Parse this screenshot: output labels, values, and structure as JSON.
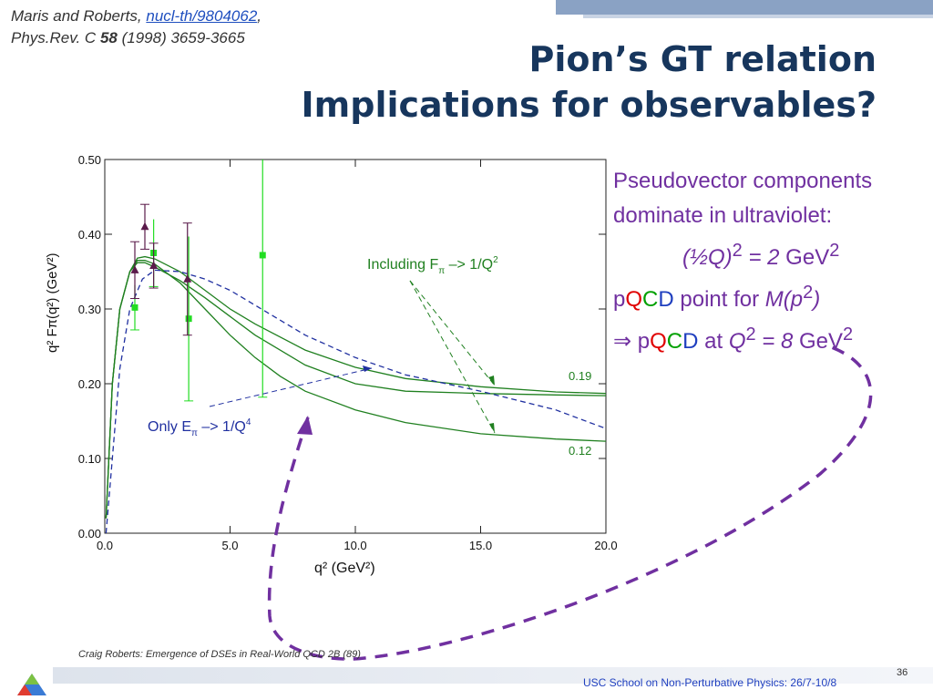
{
  "citation": {
    "authors": "Maris and Roberts,",
    "arxiv": "nucl-th/9804062",
    "journal": "Phys.Rev. C",
    "volume": "58",
    "pages": "(1998) 3659-3665"
  },
  "title": {
    "line1": "Pion’s GT relation",
    "line2": "Implications for observables?"
  },
  "side_text": {
    "line1": "Pseudovector components",
    "line2": "dominate in ultraviolet:",
    "line3_expr": "(½Q)",
    "line3_eq": " = 2 ",
    "line3_unit": "GeV",
    "line4_p": "p",
    "line4_point": " point for ",
    "line4_m": "M(p",
    "line5_arrow": "⇒ p",
    "line5_at": " at ",
    "line5_q": "Q",
    "line5_eq": " = 8 ",
    "line5_unit": "GeV",
    "sup2": "2",
    "pqcd_q": "Q",
    "pqcd_c": "C",
    "pqcd_d": "D",
    "close_paren": ")"
  },
  "footer": {
    "credit": "Craig Roberts: Emergence of DSEs in Real-World QCD 2B (89)",
    "school": "USC School on Non-Perturbative Physics: 26/7-10/8",
    "page": "36"
  },
  "colors": {
    "title": "#17365d",
    "accent": "#7030a0",
    "curve_green": "#208020",
    "data_green": "#22dd22",
    "data_purple": "#5a1a4a",
    "dashed_blue": "#2030a0"
  },
  "chart_data": {
    "type": "line",
    "xlabel": "q² (GeV²)",
    "ylabel": "q² Fπ(q²) (GeV²)",
    "xlim": [
      0,
      20
    ],
    "ylim": [
      0,
      0.5
    ],
    "x_ticks": [
      "0.0",
      "5.0",
      "10.0",
      "15.0",
      "20.0"
    ],
    "y_ticks": [
      "0.00",
      "0.10",
      "0.20",
      "0.30",
      "0.40",
      "0.50"
    ],
    "annotations": {
      "including": "Including F",
      "including_tail": " –> 1/Q",
      "only": "Only E",
      "only_tail": " –> 1/Q",
      "pi": "π",
      "exp2": "2",
      "exp4": "4",
      "label_019": "0.19",
      "label_012": "0.12"
    },
    "series": [
      {
        "style": "solid",
        "x": [
          0.05,
          0.3,
          0.6,
          1.0,
          1.3,
          1.6,
          2.0,
          3.0,
          4.0,
          5.0,
          6.0,
          8.0,
          10.0,
          12.0,
          15.0,
          18.0,
          20.0
        ],
        "y": [
          0.02,
          0.2,
          0.3,
          0.35,
          0.368,
          0.37,
          0.367,
          0.35,
          0.325,
          0.3,
          0.28,
          0.245,
          0.222,
          0.207,
          0.196,
          0.189,
          0.187
        ]
      },
      {
        "style": "solid",
        "x": [
          0.05,
          0.3,
          0.6,
          1.0,
          1.3,
          1.6,
          2.0,
          3.0,
          4.0,
          5.0,
          6.0,
          7.0,
          8.0,
          10.0,
          12.0,
          15.0,
          18.0,
          20.0
        ],
        "y": [
          0.02,
          0.2,
          0.3,
          0.35,
          0.365,
          0.365,
          0.36,
          0.335,
          0.3,
          0.265,
          0.235,
          0.21,
          0.19,
          0.165,
          0.148,
          0.133,
          0.126,
          0.123
        ]
      },
      {
        "style": "solid",
        "x": [
          0.05,
          0.3,
          0.6,
          1.0,
          1.3,
          1.6,
          2.0,
          3.0,
          4.0,
          5.0,
          6.0,
          8.0,
          10.0,
          12.0,
          15.0,
          18.0,
          20.0
        ],
        "y": [
          0.02,
          0.2,
          0.3,
          0.35,
          0.362,
          0.362,
          0.356,
          0.338,
          0.315,
          0.29,
          0.265,
          0.225,
          0.2,
          0.19,
          0.187,
          0.185,
          0.184
        ]
      },
      {
        "style": "dashed",
        "x": [
          0.05,
          0.3,
          0.6,
          1.0,
          1.5,
          2.0,
          3.0,
          4.0,
          5.0,
          6.0,
          8.0,
          10.0,
          12.0,
          15.0,
          18.0,
          20.0
        ],
        "y": [
          0.0,
          0.1,
          0.22,
          0.3,
          0.34,
          0.352,
          0.35,
          0.34,
          0.325,
          0.305,
          0.265,
          0.235,
          0.212,
          0.19,
          0.165,
          0.14
        ]
      }
    ],
    "points_green": [
      {
        "x": 1.2,
        "y": 0.302,
        "err": 0.03
      },
      {
        "x": 1.95,
        "y": 0.375,
        "err": 0.045
      },
      {
        "x": 3.35,
        "y": 0.287,
        "err": 0.11
      },
      {
        "x": 6.3,
        "y": 0.372,
        "err": 0.19
      }
    ],
    "points_purple": [
      {
        "x": 1.2,
        "y": 0.352,
        "err": 0.038
      },
      {
        "x": 1.6,
        "y": 0.41,
        "err": 0.03
      },
      {
        "x": 1.95,
        "y": 0.358,
        "err": 0.03
      },
      {
        "x": 3.3,
        "y": 0.34,
        "err": 0.075
      }
    ]
  }
}
